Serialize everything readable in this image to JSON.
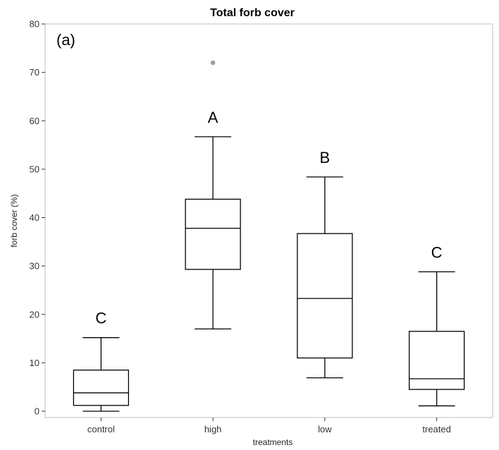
{
  "chart_data": {
    "type": "box",
    "title": "Total forb cover",
    "panel_label": "(a)",
    "xlabel": "treatments",
    "ylabel": "forb cover (%)",
    "ylim": [
      0,
      80
    ],
    "yticks": [
      0,
      10,
      20,
      30,
      40,
      50,
      60,
      70,
      80
    ],
    "categories": [
      "control",
      "high",
      "low",
      "treated"
    ],
    "boxes": [
      {
        "category": "control",
        "whisker_low": 0,
        "q1": 1.2,
        "median": 3.8,
        "q3": 8.5,
        "whisker_high": 15.2,
        "outliers": [],
        "letter": "C"
      },
      {
        "category": "high",
        "whisker_low": 17,
        "q1": 29.3,
        "median": 37.8,
        "q3": 43.8,
        "whisker_high": 56.7,
        "outliers": [
          72
        ],
        "letter": "A"
      },
      {
        "category": "low",
        "whisker_low": 6.9,
        "q1": 11,
        "median": 23.3,
        "q3": 36.7,
        "whisker_high": 48.4,
        "outliers": [],
        "letter": "B"
      },
      {
        "category": "treated",
        "whisker_low": 1.1,
        "q1": 4.5,
        "median": 6.7,
        "q3": 16.5,
        "whisker_high": 28.8,
        "outliers": [],
        "letter": "C"
      }
    ],
    "grid": false,
    "colors": {
      "box": "#000000",
      "outlier": "#a0a0a0",
      "frame": "#bfbfbf"
    }
  }
}
